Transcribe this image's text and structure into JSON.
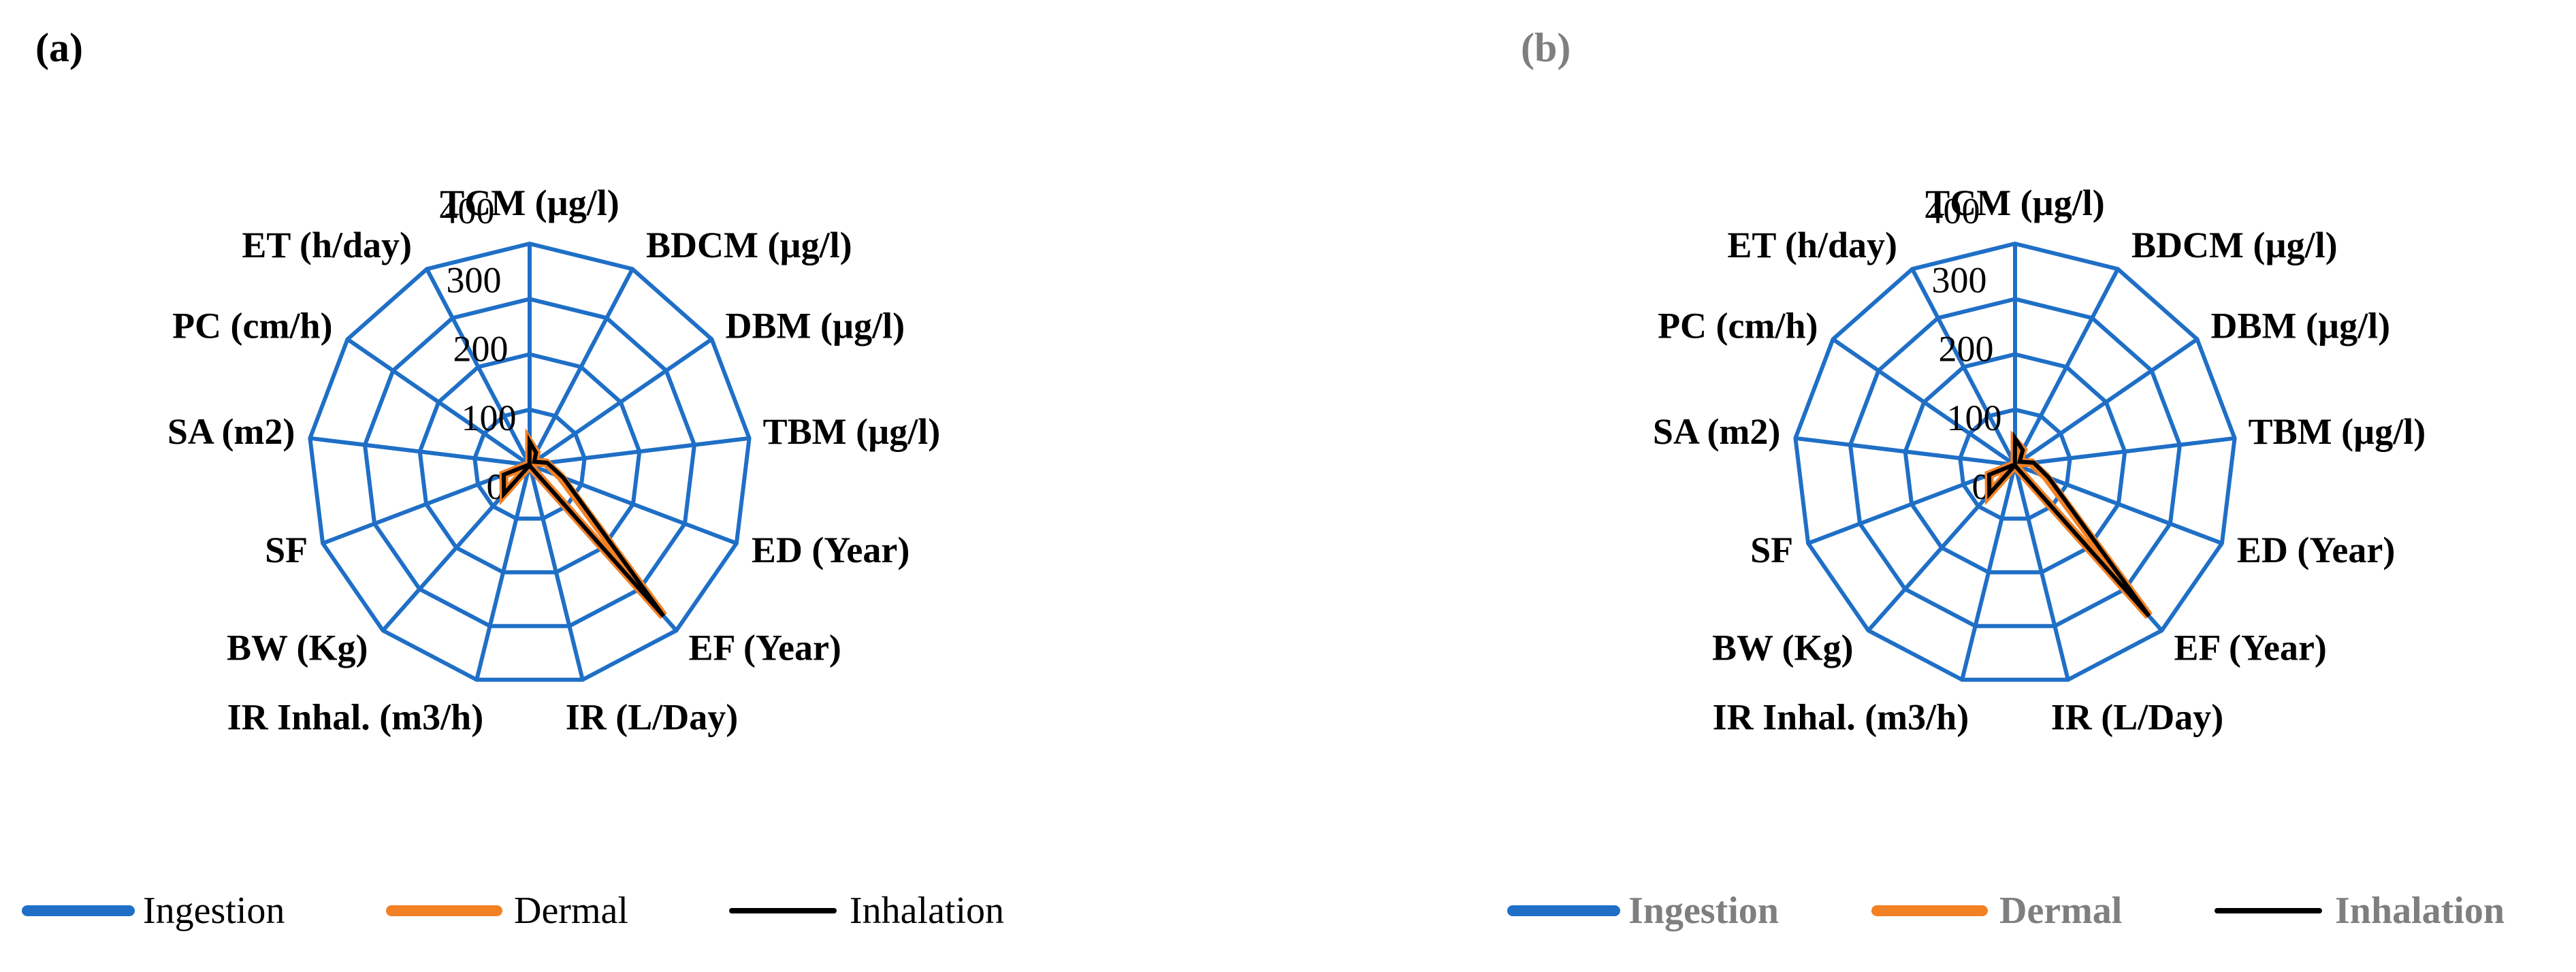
{
  "figure": {
    "panels": [
      {
        "label": "(a)",
        "label_style": "bold",
        "legend": [
          {
            "name": "Ingestion",
            "color": "#1F6FC6"
          },
          {
            "name": "Dermal",
            "color": "#F28124"
          },
          {
            "name": "Inhalation",
            "color": "#000000"
          }
        ]
      },
      {
        "label": "(b)",
        "label_style": "bold-gray",
        "legend": [
          {
            "name": "Ingestion",
            "color": "#1F6FC6"
          },
          {
            "name": "Dermal",
            "color": "#F28124"
          },
          {
            "name": "Inhalation",
            "color": "#000000"
          }
        ]
      }
    ]
  },
  "chart_data": [
    {
      "type": "radar",
      "categories": [
        "TCM (µg/l)",
        "BDCM (µg/l)",
        "DBM (µg/l)",
        "TBM (µg/l)",
        "ED (Year)",
        "EF (Year)",
        "IR (L/Day)",
        "IR Inhal. (m3/h)",
        "BW (Kg)",
        "SF",
        "SA (m2)",
        "PC (cm/h)",
        "ET (h/day)"
      ],
      "radial_ticks": [
        0,
        100,
        200,
        300,
        400
      ],
      "rlim": [
        0,
        400
      ],
      "grid": true,
      "legend_position": "bottom",
      "series": [
        {
          "name": "Ingestion",
          "color": "#1F6FC6",
          "values": [
            0,
            0,
            0,
            0,
            0,
            0,
            0,
            0,
            0,
            0,
            0,
            0,
            0
          ]
        },
        {
          "name": "Dermal",
          "color": "#F28124",
          "values": [
            40,
            25,
            10,
            30,
            60,
            365,
            2,
            0.6,
            70,
            50,
            2,
            0.01,
            0.5
          ]
        },
        {
          "name": "Inhalation",
          "color": "#000000",
          "values": [
            42,
            25,
            10,
            32,
            65,
            365,
            2,
            0.6,
            70,
            50,
            2,
            0.01,
            0.5
          ]
        }
      ]
    },
    {
      "type": "radar",
      "categories": [
        "TCM (µg/l)",
        "BDCM (µg/l)",
        "DBM (µg/l)",
        "TBM (µg/l)",
        "ED (Year)",
        "EF (Year)",
        "IR (L/Day)",
        "IR Inhal. (m3/h)",
        "BW (Kg)",
        "SF",
        "SA (m2)",
        "PC (cm/h)",
        "ET (h/day)"
      ],
      "radial_ticks": [
        0,
        100,
        200,
        300,
        400
      ],
      "rlim": [
        0,
        400
      ],
      "grid": true,
      "legend_position": "bottom",
      "series": [
        {
          "name": "Ingestion",
          "color": "#1F6FC6",
          "values": [
            0,
            0,
            0,
            0,
            0,
            0,
            0,
            0,
            0,
            0,
            0,
            0,
            0
          ]
        },
        {
          "name": "Dermal",
          "color": "#F28124",
          "values": [
            42,
            30,
            8,
            30,
            60,
            365,
            2,
            0.6,
            70,
            50,
            2,
            0.01,
            0.5
          ]
        },
        {
          "name": "Inhalation",
          "color": "#000000",
          "values": [
            48,
            30,
            10,
            34,
            65,
            365,
            2,
            0.6,
            70,
            50,
            2,
            0.01,
            0.5
          ]
        }
      ]
    }
  ]
}
